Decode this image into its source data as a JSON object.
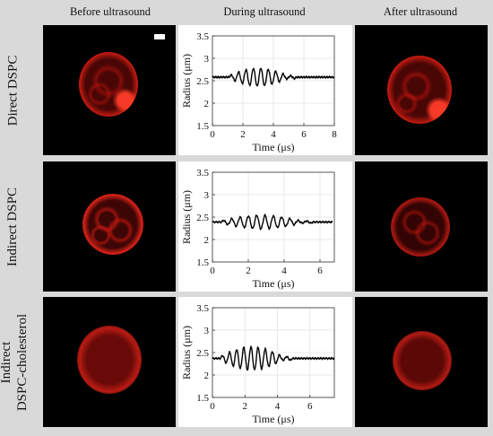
{
  "columns": [
    "Before ultrasound",
    "During ultrasound",
    "After ultrasound"
  ],
  "rows": [
    {
      "label_lines": [
        "Direct DSPC"
      ]
    },
    {
      "label_lines": [
        "Indirect DSPC"
      ]
    },
    {
      "label_lines": [
        "Indirect",
        "DSPC-cholesterol"
      ]
    }
  ],
  "colors": {
    "fluorescence": "#e01a10",
    "background": "#d9d9d9",
    "trace": "#000000"
  },
  "chart_data": [
    {
      "type": "line",
      "xlabel": "Time (μs)",
      "ylabel": "Radius (μm)",
      "xlim": [
        0,
        8
      ],
      "ylim": [
        1.5,
        3.5
      ],
      "xticks": [
        "0",
        "2",
        "4",
        "6",
        "8"
      ],
      "yticks": [
        "1.5",
        "2",
        "2.5",
        "3",
        "3.5"
      ],
      "grid": true,
      "baseline": 2.58,
      "amplitude": 0.2,
      "osc_start": 1.1,
      "osc_end": 5.5,
      "cycles": 9,
      "duration": 8,
      "series": [
        {
          "name": "",
          "x": [
            0,
            1,
            1.2,
            1.45,
            2.5,
            3.5,
            4.5,
            5.2,
            5.5,
            6,
            7,
            8
          ],
          "y": [
            2.58,
            2.58,
            2.76,
            2.4,
            2.73,
            2.43,
            2.75,
            2.41,
            2.6,
            2.56,
            2.55,
            2.55
          ]
        }
      ]
    },
    {
      "type": "line",
      "xlabel": "Time (μs)",
      "ylabel": "Radius (μm)",
      "xlim": [
        0,
        6.8
      ],
      "ylim": [
        1.5,
        3.5
      ],
      "xticks": [
        "0",
        "2",
        "4",
        "6"
      ],
      "yticks": [
        "1.5",
        "2",
        "2.5",
        "3",
        "3.5"
      ],
      "grid": true,
      "baseline": 2.39,
      "amplitude": 0.15,
      "osc_start": 0.5,
      "osc_end": 5.6,
      "cycles": 11,
      "duration": 6.7,
      "series": [
        {
          "name": "",
          "x": [
            0,
            0.5,
            1,
            2,
            2.7,
            3.5,
            4.3,
            5,
            5.6,
            6.2,
            6.7
          ],
          "y": [
            2.38,
            2.4,
            2.5,
            2.3,
            2.58,
            2.31,
            2.55,
            2.27,
            2.42,
            2.38,
            2.37
          ]
        }
      ]
    },
    {
      "type": "line",
      "xlabel": "Time (μs)",
      "ylabel": "Radius (μm)",
      "xlim": [
        0,
        7.5
      ],
      "ylim": [
        1.5,
        3.5
      ],
      "xticks": [
        "0",
        "2",
        "4",
        "6"
      ],
      "yticks": [
        "1.5",
        "2",
        "2.5",
        "3",
        "3.5"
      ],
      "grid": true,
      "baseline": 2.37,
      "amplitude": 0.26,
      "osc_start": 0.5,
      "osc_end": 4.9,
      "cycles": 10,
      "duration": 7.5,
      "series": [
        {
          "name": "",
          "x": [
            0,
            0.5,
            1,
            2,
            3,
            4.3,
            4.9,
            5.5,
            6.5,
            7.5
          ],
          "y": [
            2.36,
            2.3,
            2.6,
            2.12,
            2.6,
            2.66,
            2.38,
            2.36,
            2.35,
            2.35
          ]
        }
      ]
    }
  ]
}
